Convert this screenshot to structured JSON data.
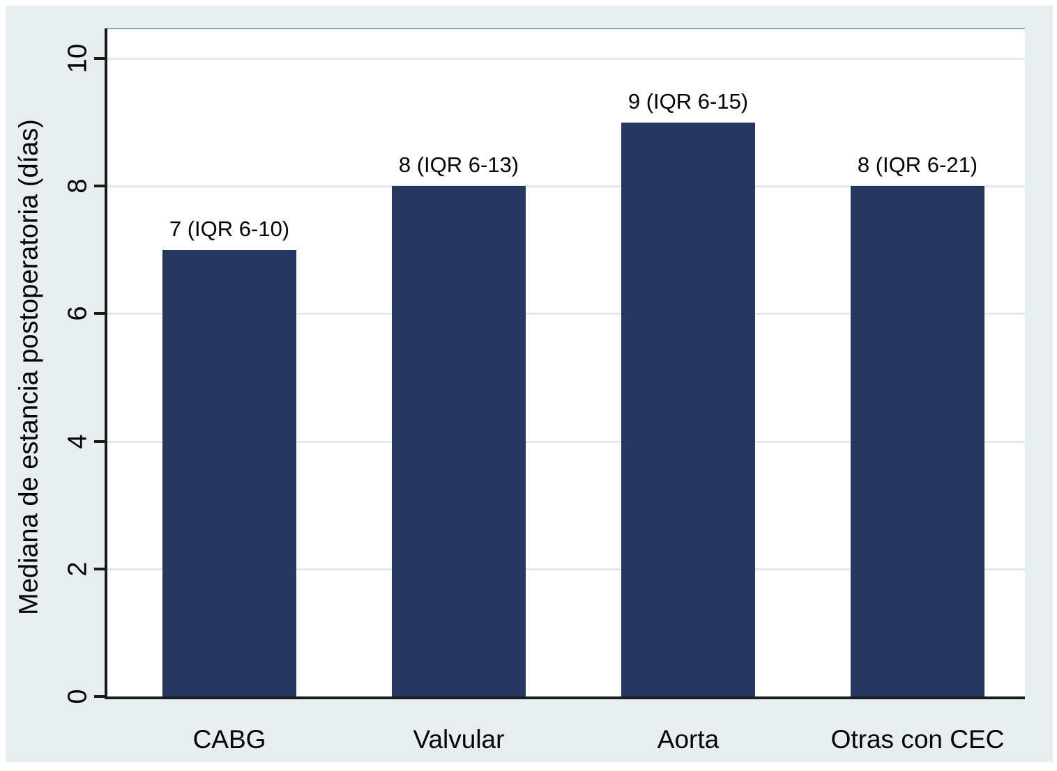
{
  "chart_data": {
    "type": "bar",
    "title": "",
    "ylabel": "Mediana de estancia postoperatoria (días)",
    "xlabel": "",
    "categories": [
      "CABG",
      "Valvular",
      "Aorta",
      "Otras con CEC"
    ],
    "values": [
      7,
      8,
      9,
      8
    ],
    "bar_labels": [
      "7 (IQR 6-10)",
      "8 (IQR 6-13)",
      "9 (IQR 6-15)",
      "8 (IQR 6-21)"
    ],
    "iqr_ranges": [
      [
        6,
        10
      ],
      [
        6,
        13
      ],
      [
        6,
        15
      ],
      [
        6,
        21
      ]
    ],
    "yticks": [
      0,
      2,
      4,
      6,
      8,
      10
    ],
    "ylim": [
      0,
      10.45
    ],
    "grid": true,
    "legend_position": "none",
    "bar_color": "#263760",
    "figure_background": "#e8edef",
    "plot_background": "#ffffff",
    "axis_color": "#1a1a1a",
    "gridline_color": "#e2e9ed"
  }
}
